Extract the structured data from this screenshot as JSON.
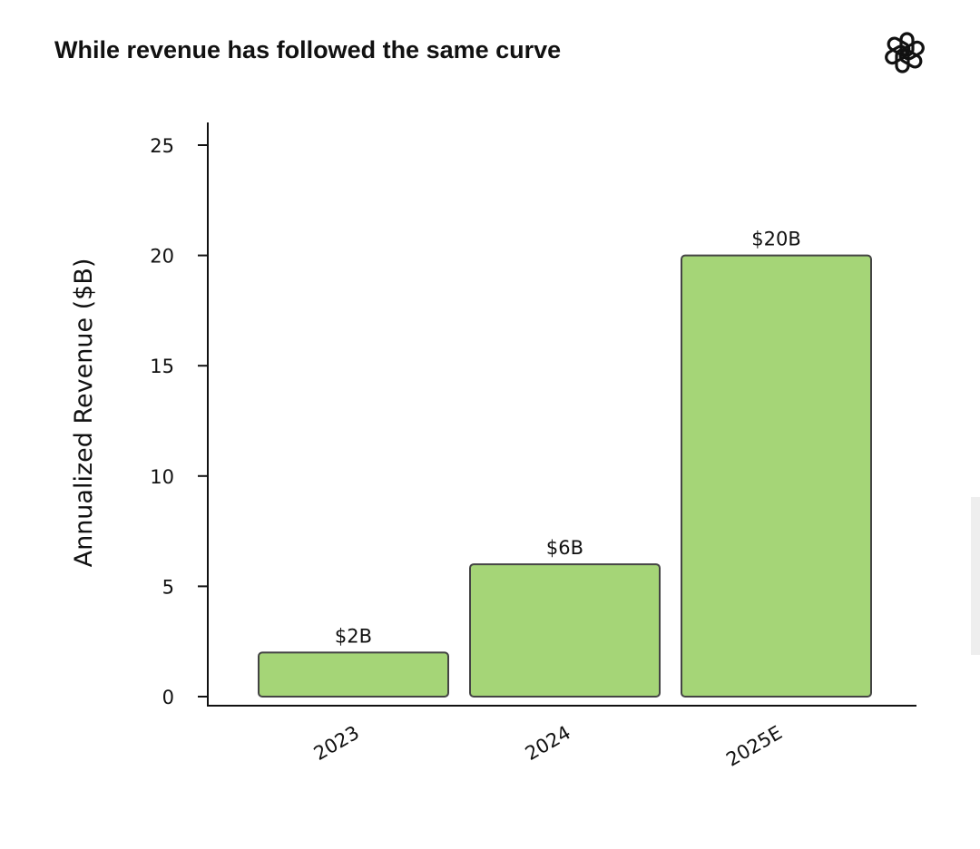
{
  "title": "While revenue has followed the same curve",
  "logo": {
    "icon": "openai-logo-icon"
  },
  "chart_data": {
    "type": "bar",
    "categories": [
      "2023",
      "2024",
      "2025E"
    ],
    "values": [
      2,
      6,
      20
    ],
    "data_labels": [
      "$2B",
      "$6B",
      "$20B"
    ],
    "title": "",
    "xlabel": "",
    "ylabel": "Annualized Revenue ($B)",
    "ylim": [
      0,
      26
    ],
    "yticks": [
      0,
      5,
      10,
      15,
      20,
      25
    ],
    "grid": false,
    "bar_color": "#a5d577",
    "bar_edge_color": "#444444"
  }
}
